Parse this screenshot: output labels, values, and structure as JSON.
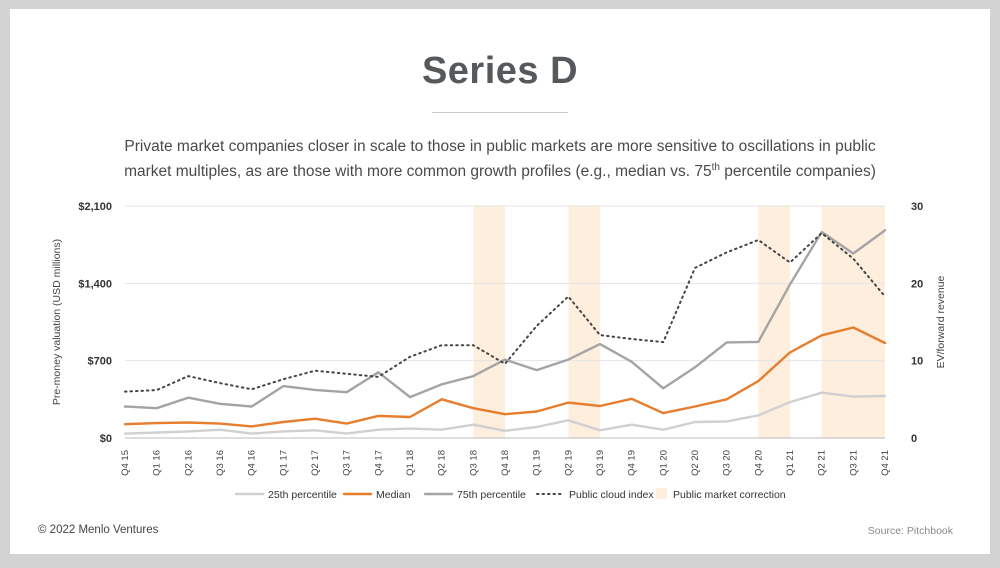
{
  "title": "Series D",
  "subtitle_parts": {
    "before": "Private market companies closer in scale to those in public markets are more sensitive to oscillations in public market multiples, as are those with more common growth profiles (e.g., median vs. 75",
    "sup": "th",
    "after": " percentile companies)"
  },
  "footer": {
    "copyright": "© 2022 Menlo Ventures",
    "source": "Source: Pitchbook"
  },
  "chart_data": {
    "type": "line",
    "x": [
      "Q4 15",
      "Q1 16",
      "Q2 16",
      "Q3 16",
      "Q4 16",
      "Q1 17",
      "Q2 17",
      "Q3 17",
      "Q4 17",
      "Q1 18",
      "Q2 18",
      "Q3 18",
      "Q4 18",
      "Q1 19",
      "Q2 19",
      "Q3 19",
      "Q4 19",
      "Q1 20",
      "Q2 20",
      "Q3 20",
      "Q4 20",
      "Q1 21",
      "Q2 21",
      "Q3 21",
      "Q4 21"
    ],
    "ylabel_left": "Pre-money valuation (USD millions)",
    "ylabel_right": "EV/forward revenue",
    "ylim_left": [
      0,
      2100
    ],
    "ylim_right": [
      0,
      30
    ],
    "yticks_left": [
      {
        "value": 0,
        "label": "$0"
      },
      {
        "value": 700,
        "label": "$700"
      },
      {
        "value": 1400,
        "label": "$1,400"
      },
      {
        "value": 2100,
        "label": "$2,100"
      }
    ],
    "yticks_right": [
      {
        "value": 0,
        "label": "0"
      },
      {
        "value": 10,
        "label": "10"
      },
      {
        "value": 20,
        "label": "20"
      },
      {
        "value": 30,
        "label": "30"
      }
    ],
    "series": [
      {
        "name": "25th percentile",
        "axis": "left",
        "color": "#d0d0d0",
        "dash": false,
        "values": [
          40,
          50,
          60,
          75,
          40,
          60,
          70,
          40,
          75,
          85,
          75,
          120,
          65,
          100,
          160,
          70,
          120,
          75,
          145,
          150,
          205,
          325,
          410,
          375,
          380
        ]
      },
      {
        "name": "Median",
        "axis": "left",
        "color": "#e67e2e",
        "dash": false,
        "values": [
          125,
          135,
          140,
          130,
          105,
          145,
          175,
          130,
          200,
          190,
          350,
          270,
          215,
          240,
          320,
          290,
          355,
          225,
          285,
          350,
          515,
          775,
          930,
          1000,
          860
        ]
      },
      {
        "name": "75th percentile",
        "axis": "left",
        "color": "#a4a4a4",
        "dash": false,
        "values": [
          285,
          270,
          365,
          310,
          285,
          470,
          435,
          415,
          595,
          370,
          485,
          560,
          710,
          615,
          710,
          850,
          690,
          450,
          640,
          865,
          870,
          1390,
          1865,
          1670,
          1880
        ]
      },
      {
        "name": "Public cloud index",
        "axis": "right",
        "color": "#444444",
        "dash": true,
        "values": [
          6.0,
          6.2,
          8.0,
          7.1,
          6.3,
          7.6,
          8.7,
          8.3,
          7.9,
          10.5,
          12.0,
          12.0,
          9.6,
          14.5,
          18.3,
          13.3,
          12.8,
          12.4,
          22.0,
          24.0,
          25.6,
          22.7,
          26.5,
          23.2,
          18.3
        ]
      }
    ],
    "highlight": {
      "name": "Public market correction",
      "color": "#fdeede",
      "ranges": [
        [
          "Q3 18",
          "Q4 18"
        ],
        [
          "Q2 19",
          "Q3 19"
        ],
        [
          "Q4 20",
          "Q1 21"
        ],
        [
          "Q2 21",
          "Q4 21"
        ]
      ]
    },
    "legend_position": "bottom"
  }
}
